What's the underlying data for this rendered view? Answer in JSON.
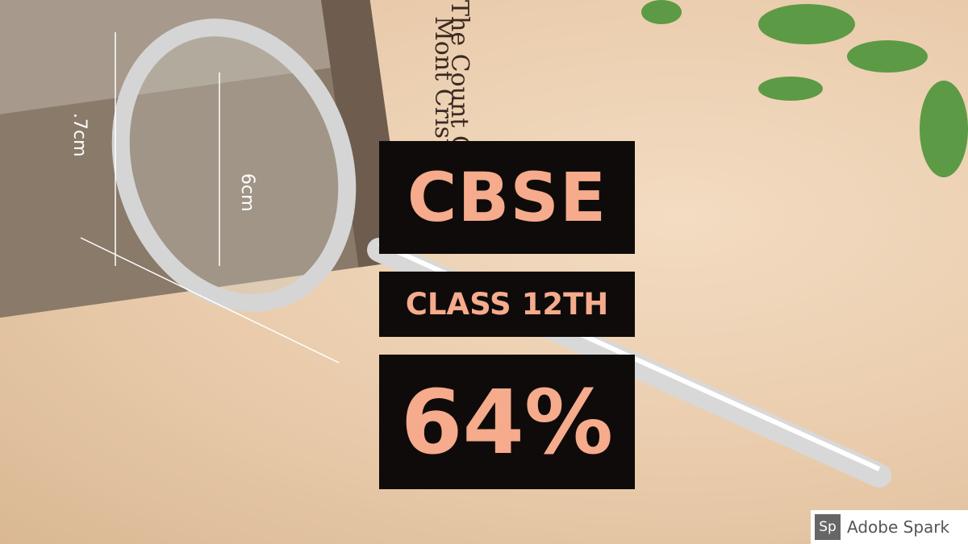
{
  "photo": {
    "book_spine": [
      "The Count Of",
      "Mont Cristo"
    ],
    "measure_outer": ".7cm",
    "measure_inner": "6cm"
  },
  "overlay": {
    "title": "CBSE",
    "subtitle": "CLASS 12TH",
    "score": "64%"
  },
  "badge": {
    "logo": "Sp",
    "text": "Adobe Spark"
  }
}
